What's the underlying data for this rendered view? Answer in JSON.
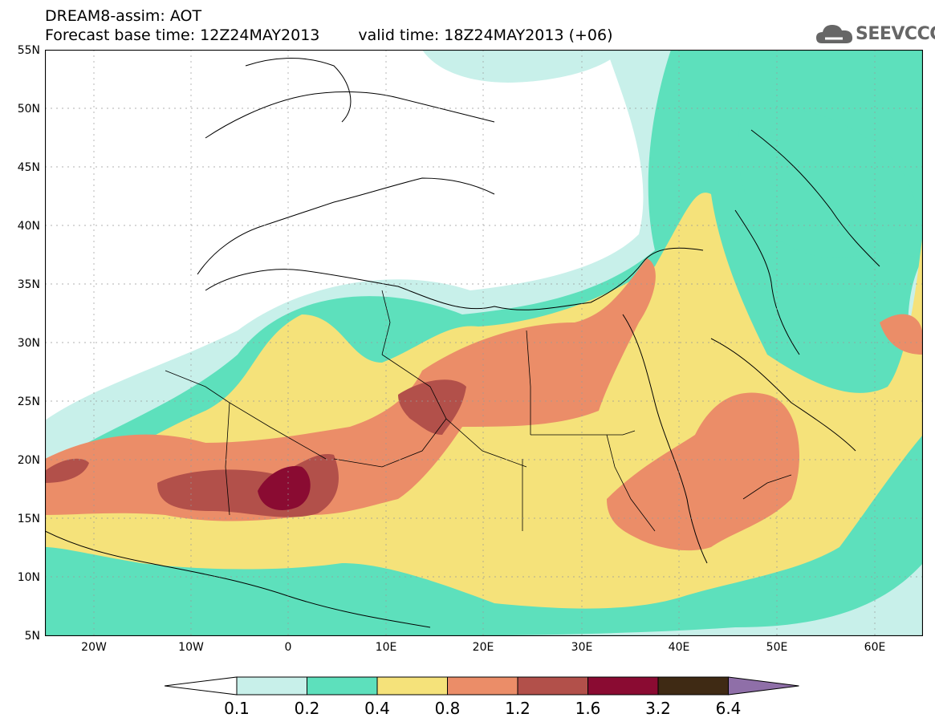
{
  "header": {
    "line1": "DREAM8-assim: AOT",
    "base_time": "Forecast base time: 12Z24MAY2013",
    "valid_time": "valid time: 18Z24MAY2013 (+06)"
  },
  "logo": {
    "text": "SEEVCCC",
    "icon": "cloud-icon"
  },
  "map": {
    "lat_labels": [
      "55N",
      "50N",
      "45N",
      "40N",
      "35N",
      "30N",
      "25N",
      "20N",
      "15N",
      "10N",
      "5N"
    ],
    "lon_labels": [
      "20W",
      "10W",
      "0",
      "10E",
      "20E",
      "30E",
      "40E",
      "50E",
      "60E"
    ]
  },
  "colorbar": {
    "labels": [
      "0.1",
      "0.2",
      "0.4",
      "0.8",
      "1.2",
      "1.6",
      "3.2",
      "6.4"
    ],
    "colors": [
      "#ffffff",
      "#c8f0ea",
      "#5de0bc",
      "#f5e27a",
      "#eb8d68",
      "#b2504a",
      "#8a0b32",
      "#3f2a14",
      "#8f6fa8"
    ]
  }
}
